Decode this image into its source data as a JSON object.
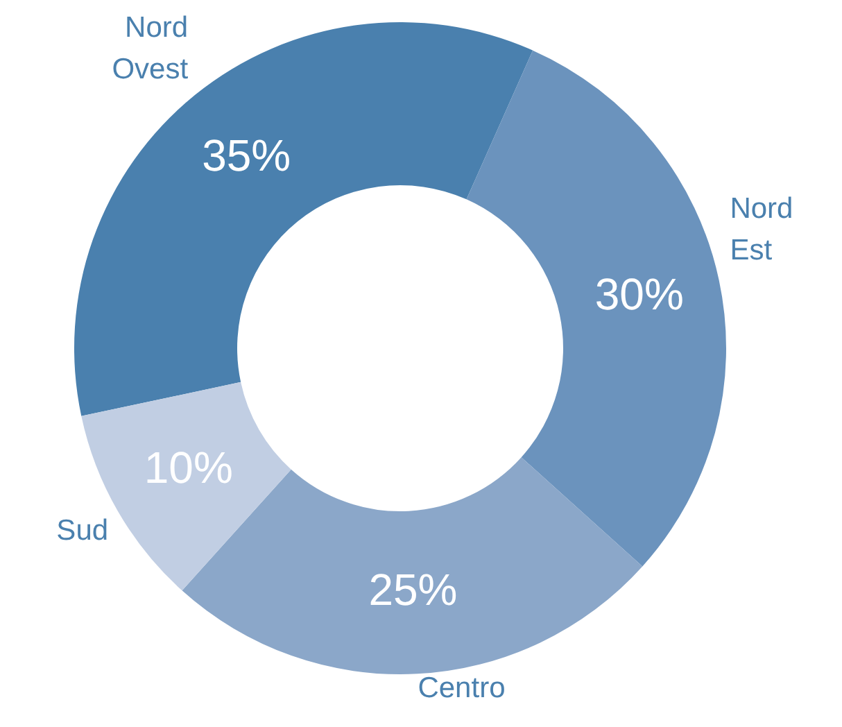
{
  "chart_data": {
    "type": "donut",
    "categories": [
      "Nord Ovest",
      "Nord Est",
      "Centro",
      "Sud"
    ],
    "values": [
      35,
      30,
      25,
      10
    ],
    "value_labels": [
      "35%",
      "30%",
      "25%",
      "10%"
    ],
    "colors": [
      "#4a80ae",
      "#6b93bd",
      "#8ba7c9",
      "#c1cee3"
    ],
    "legend": false
  }
}
